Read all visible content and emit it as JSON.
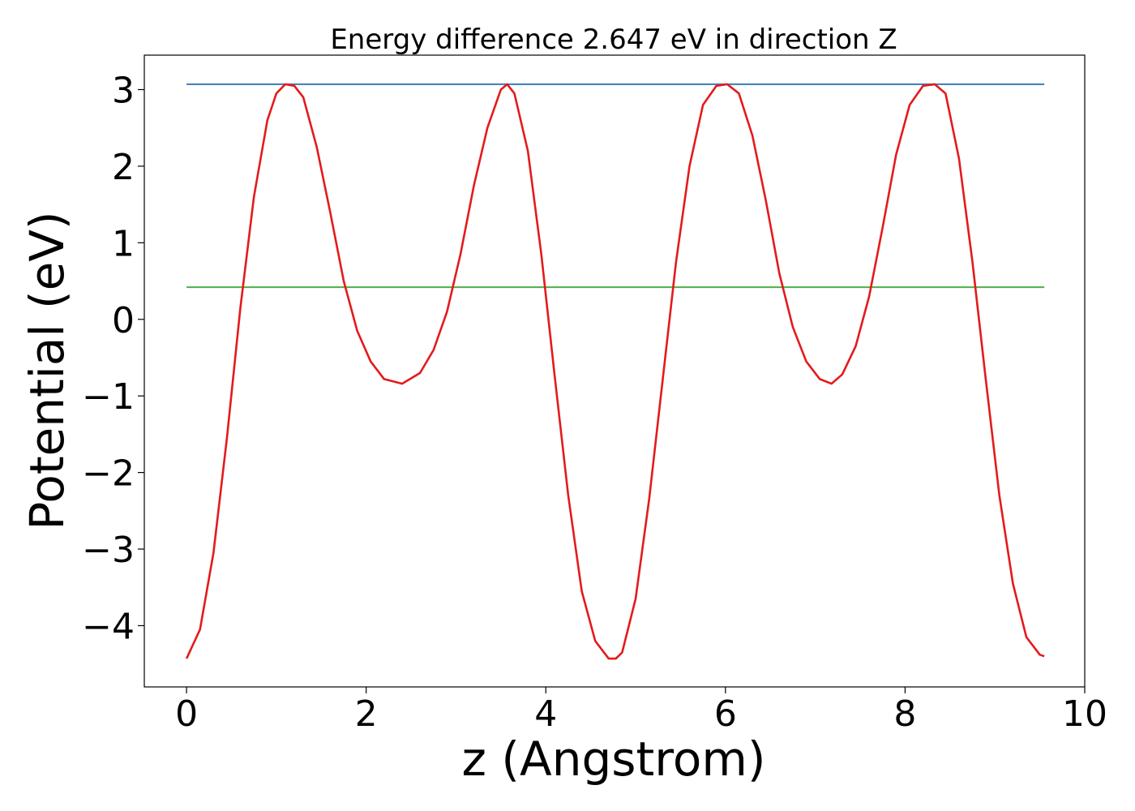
{
  "chart_data": {
    "type": "line",
    "title": "Energy difference 2.647 eV in direction Z",
    "xlabel": "z (Angstrom)",
    "ylabel": "Potential (eV)",
    "xlim": [
      -0.47,
      10.0
    ],
    "ylim": [
      -4.8,
      3.45
    ],
    "xticks": [
      0,
      2,
      4,
      6,
      8,
      10
    ],
    "xtick_labels": [
      "0",
      "2",
      "4",
      "6",
      "8",
      "10"
    ],
    "yticks": [
      3,
      2,
      1,
      0,
      -1,
      -2,
      -3,
      -4
    ],
    "ytick_labels": [
      "3",
      "2",
      "1",
      "0",
      "−1",
      "−2",
      "−3",
      "−4"
    ],
    "grid": false,
    "series": [
      {
        "color": "#e41a1c",
        "x": [
          0.0,
          0.15,
          0.3,
          0.45,
          0.6,
          0.75,
          0.9,
          1.0,
          1.1,
          1.2,
          1.3,
          1.45,
          1.6,
          1.75,
          1.9,
          2.05,
          2.2,
          2.4,
          2.6,
          2.75,
          2.9,
          3.05,
          3.2,
          3.35,
          3.5,
          3.57,
          3.65,
          3.8,
          3.95,
          4.1,
          4.25,
          4.4,
          4.55,
          4.7,
          4.78,
          4.85,
          5.0,
          5.15,
          5.3,
          5.45,
          5.6,
          5.75,
          5.9,
          6.02,
          6.15,
          6.3,
          6.45,
          6.6,
          6.75,
          6.9,
          7.05,
          7.18,
          7.3,
          7.45,
          7.6,
          7.75,
          7.9,
          8.05,
          8.2,
          8.33,
          8.45,
          8.6,
          8.75,
          8.9,
          9.05,
          9.2,
          9.35,
          9.5,
          9.55
        ],
        "y": [
          -4.43,
          -4.05,
          -3.05,
          -1.55,
          0.15,
          1.6,
          2.6,
          2.95,
          3.07,
          3.05,
          2.9,
          2.25,
          1.4,
          0.5,
          -0.15,
          -0.55,
          -0.78,
          -0.84,
          -0.7,
          -0.4,
          0.1,
          0.85,
          1.75,
          2.5,
          3.0,
          3.07,
          2.95,
          2.2,
          0.85,
          -0.75,
          -2.3,
          -3.55,
          -4.2,
          -4.43,
          -4.43,
          -4.35,
          -3.65,
          -2.35,
          -0.8,
          0.75,
          2.0,
          2.8,
          3.05,
          3.07,
          2.95,
          2.4,
          1.55,
          0.6,
          -0.1,
          -0.55,
          -0.78,
          -0.84,
          -0.72,
          -0.35,
          0.3,
          1.2,
          2.15,
          2.8,
          3.05,
          3.07,
          2.95,
          2.1,
          0.75,
          -0.8,
          -2.3,
          -3.45,
          -4.15,
          -4.38,
          -4.4
        ]
      },
      {
        "color": "#377eb8",
        "x": [
          0.0,
          9.55
        ],
        "y": [
          3.07,
          3.07
        ]
      },
      {
        "color": "#4daf4a",
        "x": [
          0.0,
          9.55
        ],
        "y": [
          0.42,
          0.42
        ]
      }
    ]
  }
}
